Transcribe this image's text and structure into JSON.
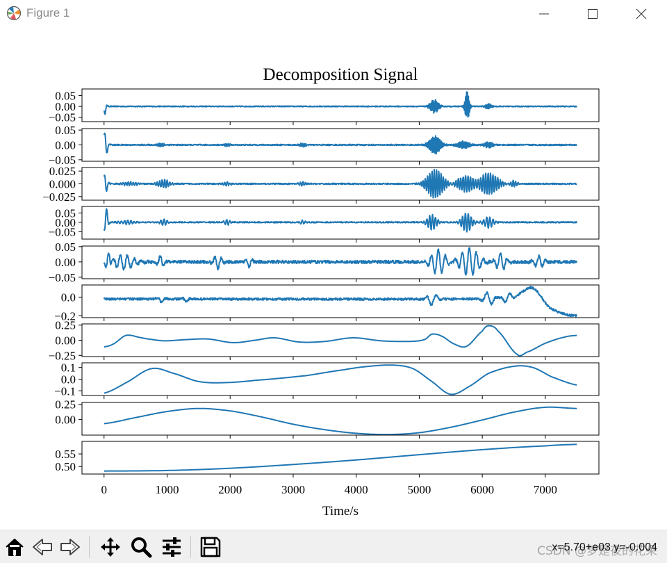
{
  "window": {
    "title": "Figure 1",
    "icons": [
      "matplotlib-icon",
      "minimize-icon",
      "maximize-icon",
      "close-icon"
    ]
  },
  "toolbar": {
    "buttons": [
      {
        "name": "home-button",
        "icon": "home-icon"
      },
      {
        "name": "back-button",
        "icon": "back-arrow-icon"
      },
      {
        "name": "forward-button",
        "icon": "forward-arrow-icon"
      },
      {
        "name": "pan-button",
        "icon": "move-icon"
      },
      {
        "name": "zoom-button",
        "icon": "magnifier-icon"
      },
      {
        "name": "configure-subplots-button",
        "icon": "sliders-icon"
      },
      {
        "name": "save-button",
        "icon": "floppy-icon"
      }
    ],
    "coords": "x=5.70+e03 y=-0.004",
    "watermark": "CSDN @梦是夜的花朵"
  },
  "chart_data": {
    "type": "line",
    "title": "Decomposition Signal",
    "xlabel": "Time/s",
    "xlim": [
      -350,
      7850
    ],
    "xticks": [
      0,
      1000,
      2000,
      3000,
      4000,
      5000,
      6000,
      7000
    ],
    "line_color": "#1f77b4",
    "panels": [
      {
        "name": "component-1",
        "ylim": [
          -0.07,
          0.08
        ],
        "yticks": [
          0.05,
          0.0,
          -0.05
        ],
        "ytick_labels": [
          "0.05",
          "0.00",
          "−0.05"
        ],
        "noise": 0.002,
        "bursts": [
          [
            10,
            0.035,
            0.0011,
            30
          ],
          [
            5240,
            0.03,
            0.006,
            80
          ],
          [
            5760,
            0.07,
            0.007,
            40
          ],
          [
            6100,
            0.012,
            0.007,
            60
          ]
        ]
      },
      {
        "name": "component-2",
        "ylim": [
          -0.055,
          0.055
        ],
        "yticks": [
          0.05,
          0.0,
          -0.05
        ],
        "ytick_labels": [
          "0.05",
          "0.00",
          "−0.05"
        ],
        "noise": 0.002,
        "bursts": [
          [
            20,
            0.045,
            0.0011,
            40
          ],
          [
            900,
            0.006,
            0.004,
            60
          ],
          [
            1950,
            0.005,
            0.004,
            60
          ],
          [
            3150,
            0.007,
            0.004,
            60
          ],
          [
            5250,
            0.03,
            0.0045,
            110
          ],
          [
            5700,
            0.012,
            0.0045,
            120
          ],
          [
            6100,
            0.01,
            0.0045,
            80
          ]
        ]
      },
      {
        "name": "component-3",
        "ylim": [
          -0.032,
          0.032
        ],
        "yticks": [
          0.025,
          0.0,
          -0.025
        ],
        "ytick_labels": [
          "0.025",
          "0.000",
          "−0.025"
        ],
        "noise": 0.0012,
        "bursts": [
          [
            20,
            0.02,
            0.0013,
            40
          ],
          [
            400,
            0.004,
            0.0025,
            140
          ],
          [
            950,
            0.008,
            0.0025,
            110
          ],
          [
            1950,
            0.004,
            0.0025,
            60
          ],
          [
            3150,
            0.004,
            0.0025,
            60
          ],
          [
            5250,
            0.028,
            0.0028,
            160
          ],
          [
            5750,
            0.016,
            0.0026,
            180
          ],
          [
            6100,
            0.022,
            0.0026,
            180
          ],
          [
            6500,
            0.006,
            0.0026,
            70
          ]
        ]
      },
      {
        "name": "component-4",
        "ylim": [
          -0.09,
          0.085
        ],
        "yticks": [
          0.05,
          0.0,
          -0.05
        ],
        "ytick_labels": [
          "0.05",
          "0.00",
          "−0.05"
        ],
        "noise": 0.003,
        "bursts": [
          [
            30,
            0.08,
            0.0011,
            35
          ],
          [
            350,
            0.01,
            0.002,
            140
          ],
          [
            950,
            0.015,
            0.002,
            70
          ],
          [
            1950,
            0.015,
            0.002,
            50
          ],
          [
            3150,
            0.01,
            0.002,
            50
          ],
          [
            5200,
            0.04,
            0.0022,
            90
          ],
          [
            5750,
            0.05,
            0.0022,
            100
          ],
          [
            6100,
            0.03,
            0.002,
            90
          ]
        ]
      },
      {
        "name": "component-5",
        "ylim": [
          -0.055,
          0.052
        ],
        "yticks": [
          0.05,
          0.0,
          -0.05
        ],
        "ytick_labels": [
          "0.05",
          "0.00",
          "−0.05"
        ],
        "noise": 0.005,
        "bursts": [
          [
            60,
            0.04,
            0.0009,
            40
          ],
          [
            320,
            0.022,
            0.0009,
            200
          ],
          [
            900,
            0.02,
            0.0009,
            60
          ],
          [
            1800,
            0.022,
            0.0009,
            80
          ],
          [
            2300,
            0.015,
            0.0009,
            60
          ],
          [
            5300,
            0.04,
            0.0009,
            140
          ],
          [
            5800,
            0.045,
            0.0009,
            180
          ],
          [
            6300,
            0.03,
            0.0009,
            100
          ],
          [
            6900,
            0.02,
            0.0009,
            90
          ]
        ]
      },
      {
        "name": "component-6",
        "ylim": [
          -0.22,
          0.13
        ],
        "yticks": [
          0.0,
          -0.2
        ],
        "ytick_labels": [
          "0.0",
          "−0.2"
        ],
        "noise": 0.012,
        "bursts": [
          [
            900,
            0.04,
            0.0006,
            60
          ],
          [
            1300,
            0.03,
            0.0006,
            60
          ],
          [
            5200,
            0.06,
            0.0006,
            100
          ],
          [
            6100,
            0.07,
            0.0006,
            100
          ],
          [
            6400,
            0.05,
            0.0006,
            100
          ]
        ],
        "spline": [
          [
            0,
            -0.02
          ],
          [
            5800,
            -0.02
          ],
          [
            6500,
            0.0
          ],
          [
            6800,
            0.1
          ],
          [
            7050,
            -0.1
          ],
          [
            7300,
            -0.18
          ],
          [
            7500,
            -0.2
          ]
        ]
      },
      {
        "name": "component-7",
        "ylim": [
          -0.27,
          0.27
        ],
        "yticks": [
          0.25,
          0.0,
          -0.25
        ],
        "ytick_labels": [
          "0.25",
          "0.00",
          "−0.25"
        ],
        "spline": [
          [
            0,
            -0.11
          ],
          [
            150,
            -0.06
          ],
          [
            350,
            0.08
          ],
          [
            600,
            0.04
          ],
          [
            700,
            0.02
          ],
          [
            950,
            -0.01
          ],
          [
            1300,
            0.01
          ],
          [
            1650,
            0.02
          ],
          [
            2050,
            -0.04
          ],
          [
            2400,
            0.0
          ],
          [
            2700,
            0.04
          ],
          [
            3100,
            -0.03
          ],
          [
            3500,
            -0.02
          ],
          [
            3950,
            0.04
          ],
          [
            4400,
            -0.01
          ],
          [
            4800,
            -0.02
          ],
          [
            5000,
            -0.01
          ],
          [
            5100,
            0.02
          ],
          [
            5200,
            0.1
          ],
          [
            5350,
            0.07
          ],
          [
            5550,
            -0.06
          ],
          [
            5750,
            -0.1
          ],
          [
            6000,
            0.15
          ],
          [
            6100,
            0.24
          ],
          [
            6250,
            0.15
          ],
          [
            6550,
            -0.23
          ],
          [
            6700,
            -0.2
          ],
          [
            7000,
            -0.05
          ],
          [
            7300,
            0.05
          ],
          [
            7500,
            0.08
          ]
        ]
      },
      {
        "name": "component-8",
        "ylim": [
          -0.14,
          0.14
        ],
        "yticks": [
          0.1,
          0.0,
          -0.1
        ],
        "ytick_labels": [
          "0.1",
          "0.0",
          "−0.1"
        ],
        "spline": [
          [
            0,
            -0.12
          ],
          [
            350,
            -0.03
          ],
          [
            750,
            0.09
          ],
          [
            1100,
            0.05
          ],
          [
            1500,
            -0.02
          ],
          [
            1900,
            -0.03
          ],
          [
            2400,
            -0.01
          ],
          [
            3200,
            0.03
          ],
          [
            3800,
            0.08
          ],
          [
            4200,
            0.11
          ],
          [
            4600,
            0.12
          ],
          [
            4900,
            0.09
          ],
          [
            5200,
            -0.02
          ],
          [
            5500,
            -0.13
          ],
          [
            5800,
            -0.06
          ],
          [
            6100,
            0.05
          ],
          [
            6500,
            0.11
          ],
          [
            6800,
            0.1
          ],
          [
            7100,
            0.02
          ],
          [
            7500,
            -0.05
          ]
        ]
      },
      {
        "name": "component-9",
        "ylim": [
          -0.26,
          0.28
        ],
        "yticks": [
          0.25,
          0.0
        ],
        "ytick_labels": [
          "0.25",
          "0.00"
        ],
        "spline": [
          [
            0,
            -0.07
          ],
          [
            500,
            0.03
          ],
          [
            1000,
            0.13
          ],
          [
            1500,
            0.18
          ],
          [
            2000,
            0.14
          ],
          [
            2500,
            0.04
          ],
          [
            3000,
            -0.08
          ],
          [
            3500,
            -0.17
          ],
          [
            4000,
            -0.23
          ],
          [
            4500,
            -0.25
          ],
          [
            5000,
            -0.22
          ],
          [
            5500,
            -0.13
          ],
          [
            6000,
            -0.01
          ],
          [
            6500,
            0.12
          ],
          [
            7000,
            0.2
          ],
          [
            7500,
            0.18
          ]
        ]
      },
      {
        "name": "component-10",
        "ylim": [
          0.47,
          0.6
        ],
        "yticks": [
          0.55,
          0.5
        ],
        "ytick_labels": [
          "0.55",
          "0.50"
        ],
        "spline": [
          [
            0,
            0.482
          ],
          [
            1000,
            0.484
          ],
          [
            2000,
            0.493
          ],
          [
            3000,
            0.508
          ],
          [
            4000,
            0.526
          ],
          [
            5000,
            0.547
          ],
          [
            6000,
            0.567
          ],
          [
            7000,
            0.582
          ],
          [
            7500,
            0.588
          ]
        ]
      }
    ]
  }
}
